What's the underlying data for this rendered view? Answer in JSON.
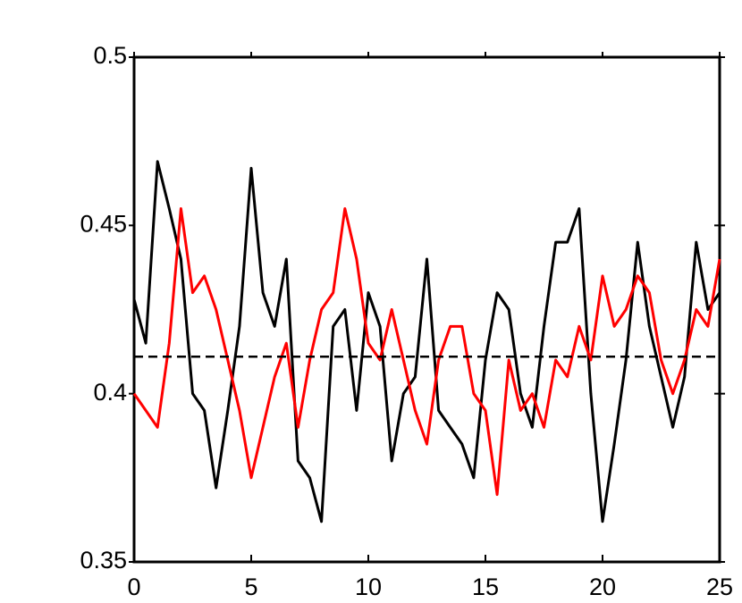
{
  "chart_data": {
    "type": "line",
    "x": [
      0,
      0.5,
      1,
      1.5,
      2,
      2.5,
      3,
      3.5,
      4,
      4.5,
      5,
      5.5,
      6,
      6.5,
      7,
      7.5,
      8,
      8.5,
      9,
      9.5,
      10,
      10.5,
      11,
      11.5,
      12,
      12.5,
      13,
      13.5,
      14,
      14.5,
      15,
      15.5,
      16,
      16.5,
      17,
      17.5,
      18,
      18.5,
      19,
      19.5,
      20,
      20.5,
      21,
      21.5,
      22,
      22.5,
      23,
      23.5,
      24,
      24.5,
      25
    ],
    "series": [
      {
        "color": "#000000",
        "values": [
          0.428,
          0.415,
          0.469,
          0.455,
          0.44,
          0.4,
          0.395,
          0.372,
          0.395,
          0.42,
          0.467,
          0.43,
          0.42,
          0.44,
          0.38,
          0.375,
          0.362,
          0.42,
          0.425,
          0.395,
          0.43,
          0.42,
          0.38,
          0.4,
          0.405,
          0.44,
          0.395,
          0.39,
          0.385,
          0.375,
          0.41,
          0.43,
          0.425,
          0.4,
          0.39,
          0.42,
          0.445,
          0.445,
          0.455,
          0.4,
          0.362,
          0.385,
          0.41,
          0.445,
          0.42,
          0.405,
          0.39,
          0.405,
          0.445,
          0.425,
          0.43
        ]
      },
      {
        "color": "#ff0000",
        "values": [
          0.4,
          0.395,
          0.39,
          0.415,
          0.455,
          0.43,
          0.435,
          0.425,
          0.41,
          0.395,
          0.375,
          0.39,
          0.405,
          0.415,
          0.39,
          0.41,
          0.425,
          0.43,
          0.455,
          0.44,
          0.415,
          0.41,
          0.425,
          0.41,
          0.395,
          0.385,
          0.41,
          0.42,
          0.42,
          0.4,
          0.395,
          0.37,
          0.41,
          0.395,
          0.4,
          0.39,
          0.41,
          0.405,
          0.42,
          0.41,
          0.435,
          0.42,
          0.425,
          0.435,
          0.43,
          0.41,
          0.4,
          0.41,
          0.425,
          0.42,
          0.44
        ]
      }
    ],
    "hline": 0.411,
    "xlim": [
      0,
      25
    ],
    "xticks": [
      0,
      5,
      10,
      15,
      20,
      25
    ],
    "ylim": [
      0.35,
      0.5
    ],
    "yticks": [
      0.35,
      0.4,
      0.45,
      0.5
    ]
  }
}
